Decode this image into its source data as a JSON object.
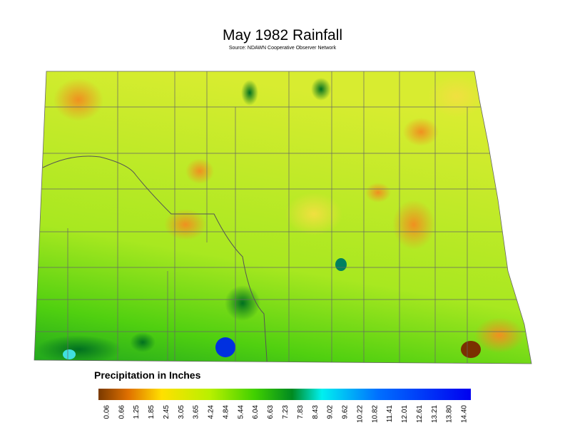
{
  "header": {
    "title": "May 1982 Rainfall",
    "source": "Source: NDAWN Cooperative Observer Network"
  },
  "legend": {
    "title": "Precipitation in Inches",
    "labels": [
      "0.06",
      "0.66",
      "1.25",
      "1.85",
      "2.45",
      "3.05",
      "3.65",
      "4.24",
      "4.84",
      "5.44",
      "6.04",
      "6.63",
      "7.23",
      "7.83",
      "8.43",
      "9.02",
      "9.62",
      "10.22",
      "10.82",
      "11.41",
      "12.01",
      "12.61",
      "13.21",
      "13.80",
      "14.40"
    ]
  }
}
